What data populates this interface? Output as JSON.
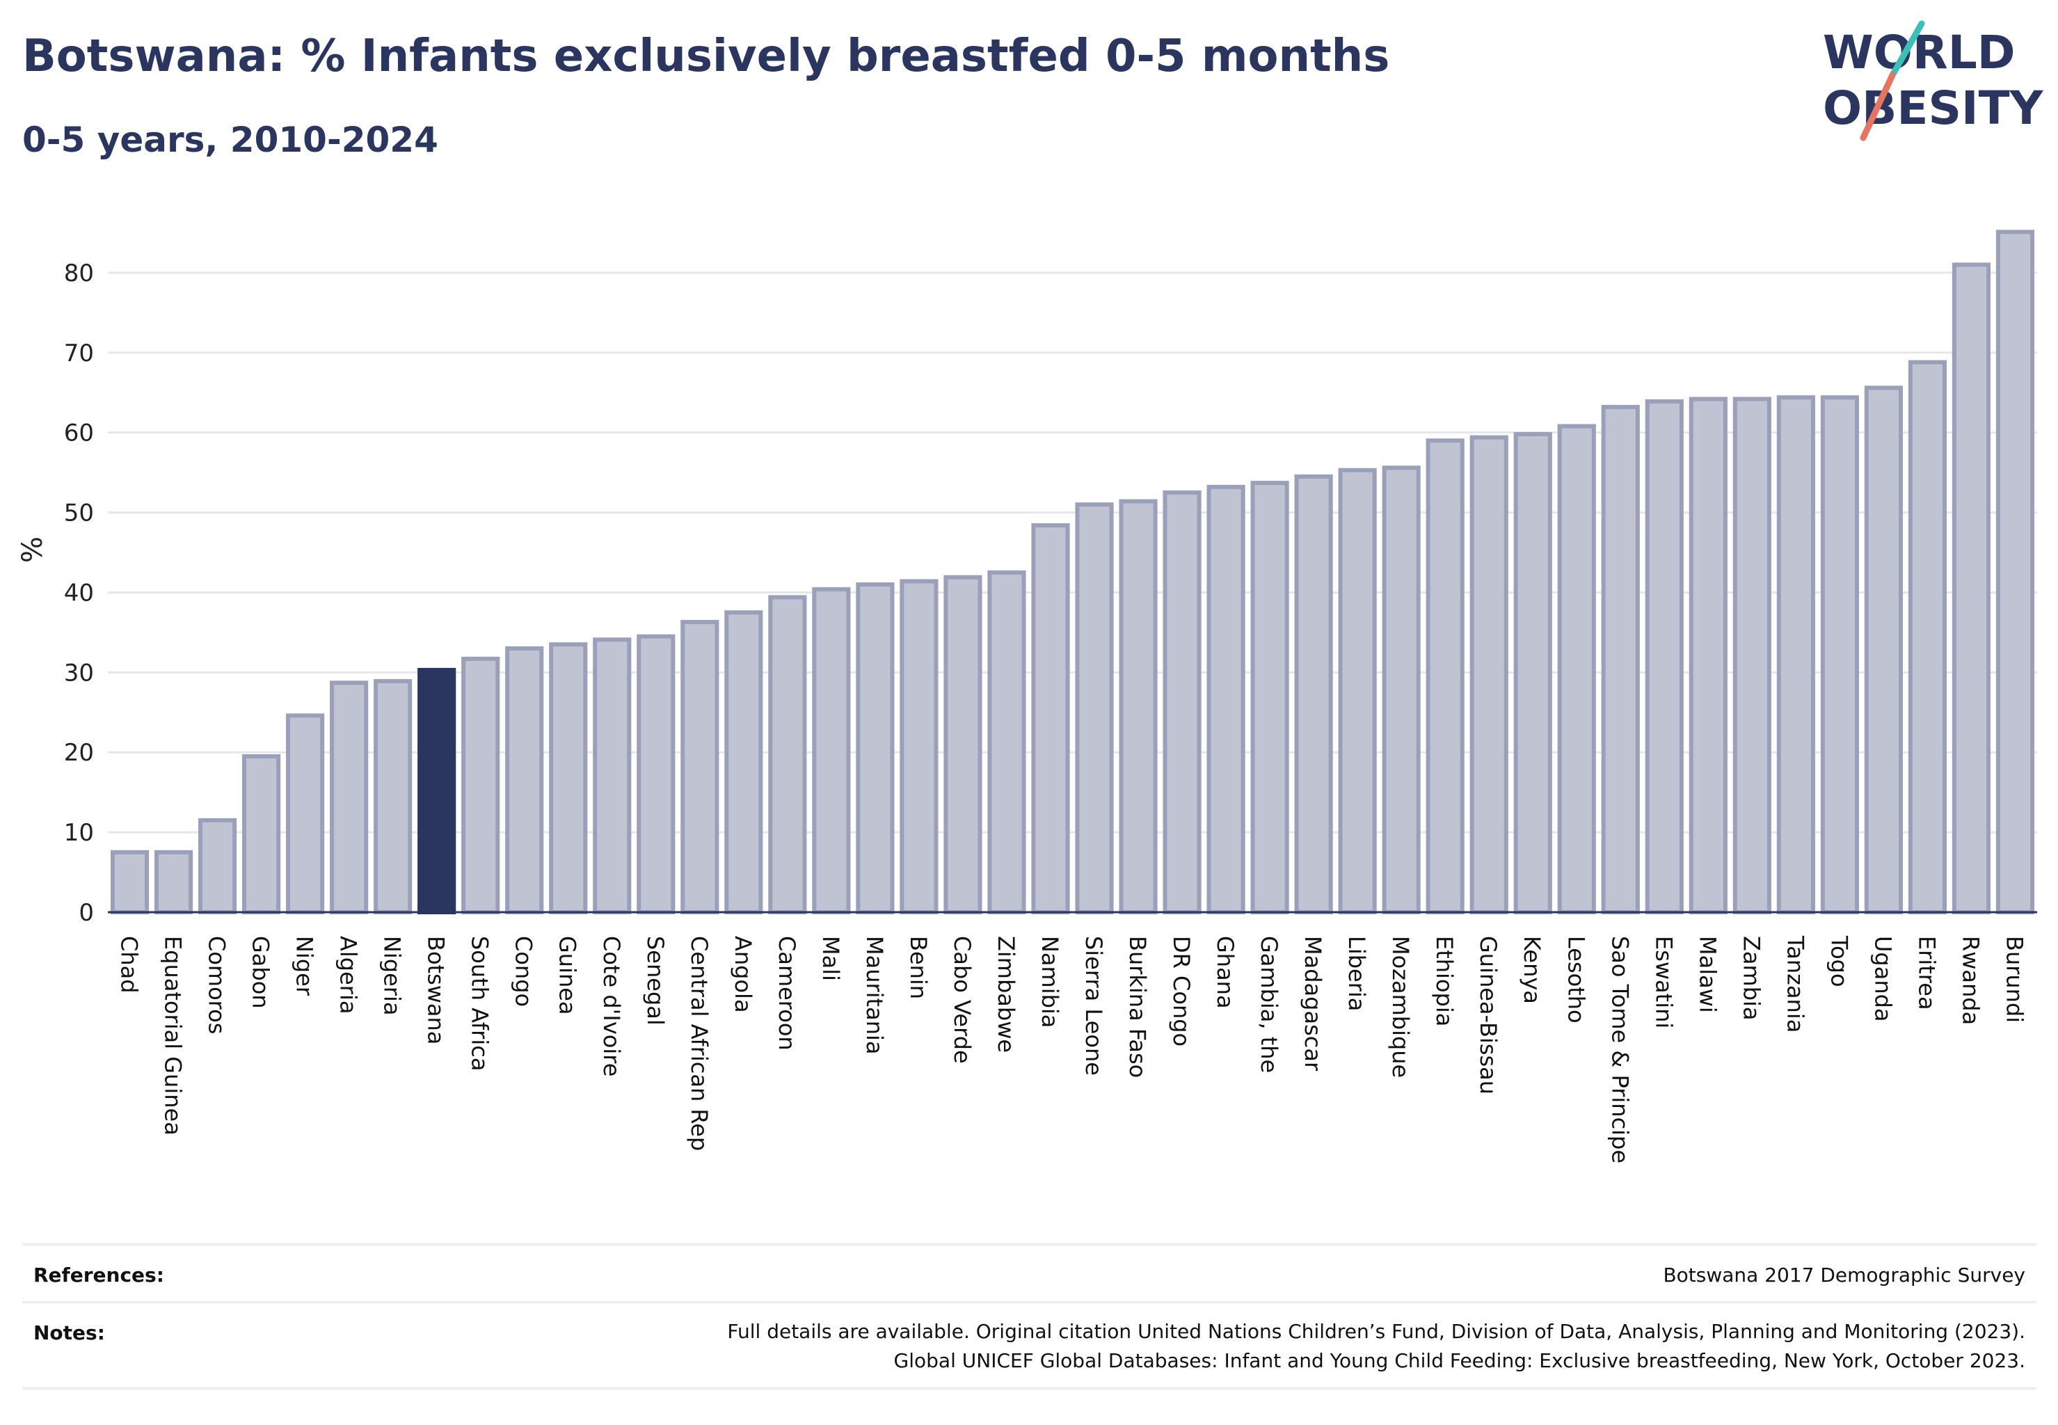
{
  "header": {
    "title": "Botswana: % Infants exclusively breastfed 0-5 months",
    "subtitle": "0-5 years, 2010-2024"
  },
  "logo": {
    "line1": "WORLD",
    "line2": "OBESITY",
    "text_color": "#2a3560",
    "accent_teal": "#3bbfb8",
    "accent_coral": "#e8735f"
  },
  "colors": {
    "bar_fill": "#bfc3d2",
    "bar_stroke": "#9aa0b9",
    "highlight_fill": "#2a3560",
    "grid": "#e6e7ec",
    "axis": "#2a3560"
  },
  "chart_data": {
    "type": "bar",
    "ylabel": "%",
    "ylim": [
      0,
      88
    ],
    "yticks": [
      0,
      10,
      20,
      30,
      40,
      50,
      60,
      70,
      80
    ],
    "grid": true,
    "highlight": "Botswana",
    "categories": [
      "Chad",
      "Equatorial Guinea",
      "Comoros",
      "Gabon",
      "Niger",
      "Algeria",
      "Nigeria",
      "Botswana",
      "South Africa",
      "Congo",
      "Guinea",
      "Cote d'Ivoire",
      "Senegal",
      "Central African Rep",
      "Angola",
      "Cameroon",
      "Mali",
      "Mauritania",
      "Benin",
      "Cabo Verde",
      "Zimbabwe",
      "Namibia",
      "Sierra Leone",
      "Burkina Faso",
      "DR Congo",
      "Ghana",
      "Gambia, the",
      "Madagascar",
      "Liberia",
      "Mozambique",
      "Ethiopia",
      "Guinea-Bissau",
      "Kenya",
      "Lesotho",
      "Sao Tome & Principe",
      "Eswatini",
      "Malawi",
      "Zambia",
      "Tanzania",
      "Togo",
      "Uganda",
      "Eritrea",
      "Rwanda",
      "Burundi"
    ],
    "values": [
      7.5,
      7.5,
      11.5,
      19.5,
      24.6,
      28.7,
      28.9,
      30.3,
      31.7,
      33.0,
      33.5,
      34.1,
      34.5,
      36.3,
      37.5,
      39.4,
      40.4,
      41.0,
      41.4,
      41.9,
      42.5,
      48.4,
      51.0,
      51.4,
      52.5,
      53.2,
      53.7,
      54.5,
      55.3,
      55.6,
      59.0,
      59.4,
      59.8,
      60.8,
      63.2,
      63.9,
      64.2,
      64.2,
      64.4,
      64.4,
      65.6,
      68.8,
      81.0,
      85.1
    ]
  },
  "footer": {
    "references_label": "References:",
    "references_value": "Botswana 2017 Demographic Survey",
    "notes_label": "Notes:",
    "notes_line1": "Full details are available. Original citation United Nations Children’s Fund, Division of Data, Analysis, Planning and Monitoring (2023).",
    "notes_line2": "Global UNICEF Global Databases: Infant and Young Child Feeding: Exclusive breastfeeding, New York, October 2023."
  }
}
